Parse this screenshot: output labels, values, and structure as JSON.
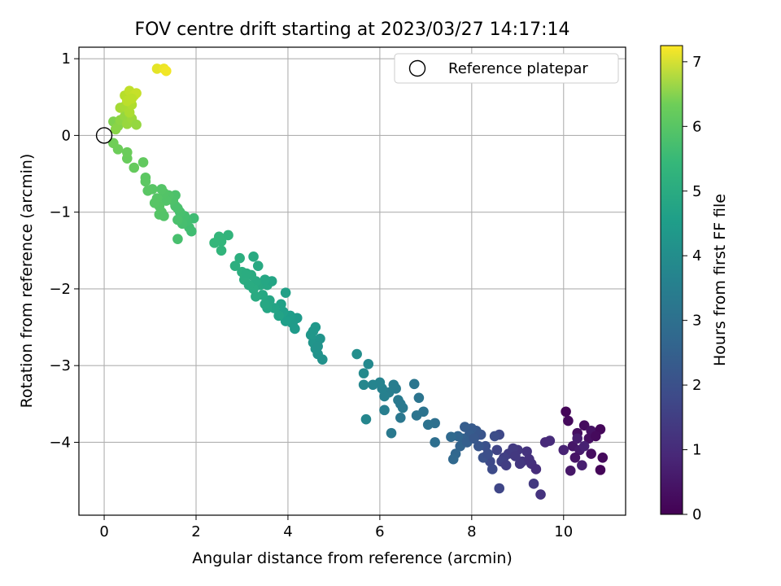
{
  "chart_data": {
    "type": "scatter",
    "title": "FOV centre drift starting at 2023/03/27 14:17:14",
    "xlabel": "Angular distance from reference (arcmin)",
    "ylabel": "Rotation from reference (arcmin)",
    "xlim": [
      -0.55,
      11.35
    ],
    "ylim": [
      -4.95,
      1.15
    ],
    "xticks": [
      0,
      2,
      4,
      6,
      8,
      10
    ],
    "xtick_labels": [
      "0",
      "2",
      "4",
      "6",
      "8",
      "10"
    ],
    "yticks": [
      1,
      0,
      -1,
      -2,
      -3,
      -4
    ],
    "ytick_labels": [
      "1",
      "0",
      "−1",
      "−2",
      "−3",
      "−4"
    ],
    "grid": true,
    "colormap": "viridis",
    "colorbar": {
      "label": "Hours from first FF file",
      "range": [
        0,
        7.25
      ],
      "ticks": [
        0,
        1,
        2,
        3,
        4,
        5,
        6,
        7
      ],
      "tick_labels": [
        "0",
        "1",
        "2",
        "3",
        "4",
        "5",
        "6",
        "7"
      ]
    },
    "legend": {
      "position": "top-right",
      "entries": [
        "Reference platepar"
      ]
    },
    "reference_point": {
      "x": 0,
      "y": 0,
      "name": "Reference platepar"
    },
    "points": [
      {
        "x": 10.05,
        "y": -3.6,
        "c": 0.1
      },
      {
        "x": 10.1,
        "y": -3.72,
        "c": 0.2
      },
      {
        "x": 10.3,
        "y": -3.88,
        "c": 0.3
      },
      {
        "x": 10.45,
        "y": -3.78,
        "c": 0.25
      },
      {
        "x": 10.6,
        "y": -3.85,
        "c": 0.4
      },
      {
        "x": 10.8,
        "y": -3.83,
        "c": 0.15
      },
      {
        "x": 10.55,
        "y": -3.95,
        "c": 0.35
      },
      {
        "x": 10.7,
        "y": -3.92,
        "c": 0.2
      },
      {
        "x": 10.2,
        "y": -4.05,
        "c": 0.5
      },
      {
        "x": 10.35,
        "y": -4.1,
        "c": 0.6
      },
      {
        "x": 10.0,
        "y": -4.1,
        "c": 0.8
      },
      {
        "x": 10.25,
        "y": -4.2,
        "c": 0.45
      },
      {
        "x": 10.6,
        "y": -4.15,
        "c": 0.3
      },
      {
        "x": 10.85,
        "y": -4.2,
        "c": 0.2
      },
      {
        "x": 10.4,
        "y": -4.3,
        "c": 0.7
      },
      {
        "x": 10.15,
        "y": -4.37,
        "c": 0.5
      },
      {
        "x": 10.8,
        "y": -4.36,
        "c": 0.1
      },
      {
        "x": 10.3,
        "y": -3.95,
        "c": 0.65
      },
      {
        "x": 10.45,
        "y": -4.05,
        "c": 0.75
      },
      {
        "x": 9.7,
        "y": -3.98,
        "c": 1.0
      },
      {
        "x": 9.6,
        "y": -4.0,
        "c": 0.95
      },
      {
        "x": 9.2,
        "y": -4.12,
        "c": 1.2
      },
      {
        "x": 9.0,
        "y": -4.1,
        "c": 1.3
      },
      {
        "x": 8.9,
        "y": -4.08,
        "c": 1.4
      },
      {
        "x": 8.8,
        "y": -4.15,
        "c": 1.45
      },
      {
        "x": 8.7,
        "y": -4.2,
        "c": 1.55
      },
      {
        "x": 9.1,
        "y": -4.25,
        "c": 1.25
      },
      {
        "x": 9.3,
        "y": -4.28,
        "c": 1.1
      },
      {
        "x": 9.4,
        "y": -4.35,
        "c": 1.05
      },
      {
        "x": 9.25,
        "y": -4.22,
        "c": 1.15
      },
      {
        "x": 9.5,
        "y": -4.68,
        "c": 1.2
      },
      {
        "x": 9.35,
        "y": -4.54,
        "c": 1.35
      },
      {
        "x": 8.6,
        "y": -4.6,
        "c": 1.7
      },
      {
        "x": 8.55,
        "y": -4.1,
        "c": 1.65
      },
      {
        "x": 8.4,
        "y": -4.25,
        "c": 1.8
      },
      {
        "x": 8.45,
        "y": -4.35,
        "c": 1.85
      },
      {
        "x": 8.6,
        "y": -3.9,
        "c": 1.75
      },
      {
        "x": 8.5,
        "y": -3.92,
        "c": 1.9
      },
      {
        "x": 8.3,
        "y": -4.05,
        "c": 2.0
      },
      {
        "x": 8.25,
        "y": -4.2,
        "c": 2.05
      },
      {
        "x": 8.35,
        "y": -4.15,
        "c": 1.95
      },
      {
        "x": 8.65,
        "y": -4.25,
        "c": 1.6
      },
      {
        "x": 8.75,
        "y": -4.3,
        "c": 1.5
      },
      {
        "x": 9.05,
        "y": -4.28,
        "c": 1.3
      },
      {
        "x": 8.95,
        "y": -4.18,
        "c": 1.35
      },
      {
        "x": 8.2,
        "y": -3.9,
        "c": 2.1
      },
      {
        "x": 8.1,
        "y": -3.85,
        "c": 2.2
      },
      {
        "x": 8.0,
        "y": -3.82,
        "c": 2.3
      },
      {
        "x": 7.85,
        "y": -3.8,
        "c": 2.4
      },
      {
        "x": 7.95,
        "y": -3.9,
        "c": 2.35
      },
      {
        "x": 7.8,
        "y": -3.95,
        "c": 2.5
      },
      {
        "x": 7.75,
        "y": -4.05,
        "c": 2.6
      },
      {
        "x": 7.9,
        "y": -4.0,
        "c": 2.45
      },
      {
        "x": 8.05,
        "y": -3.95,
        "c": 2.25
      },
      {
        "x": 7.65,
        "y": -4.15,
        "c": 2.7
      },
      {
        "x": 7.6,
        "y": -4.22,
        "c": 2.75
      },
      {
        "x": 7.7,
        "y": -3.92,
        "c": 2.65
      },
      {
        "x": 8.15,
        "y": -4.05,
        "c": 2.15
      },
      {
        "x": 7.55,
        "y": -3.93,
        "c": 2.8
      },
      {
        "x": 7.2,
        "y": -3.75,
        "c": 3.0
      },
      {
        "x": 7.2,
        "y": -4.0,
        "c": 2.95
      },
      {
        "x": 7.05,
        "y": -3.77,
        "c": 3.05
      },
      {
        "x": 6.95,
        "y": -3.6,
        "c": 3.1
      },
      {
        "x": 6.85,
        "y": -3.42,
        "c": 3.15
      },
      {
        "x": 6.75,
        "y": -3.24,
        "c": 3.2
      },
      {
        "x": 6.8,
        "y": -3.65,
        "c": 3.12
      },
      {
        "x": 6.5,
        "y": -3.55,
        "c": 3.3
      },
      {
        "x": 6.4,
        "y": -3.45,
        "c": 3.35
      },
      {
        "x": 6.35,
        "y": -3.3,
        "c": 3.4
      },
      {
        "x": 6.3,
        "y": -3.25,
        "c": 3.45
      },
      {
        "x": 6.2,
        "y": -3.35,
        "c": 3.5
      },
      {
        "x": 6.1,
        "y": -3.4,
        "c": 3.55
      },
      {
        "x": 6.05,
        "y": -3.3,
        "c": 3.6
      },
      {
        "x": 6.0,
        "y": -3.22,
        "c": 3.65
      },
      {
        "x": 6.1,
        "y": -3.58,
        "c": 3.5
      },
      {
        "x": 6.25,
        "y": -3.88,
        "c": 3.3
      },
      {
        "x": 6.45,
        "y": -3.68,
        "c": 3.25
      },
      {
        "x": 6.45,
        "y": -3.5,
        "c": 3.3
      },
      {
        "x": 5.85,
        "y": -3.25,
        "c": 3.7
      },
      {
        "x": 5.65,
        "y": -3.25,
        "c": 3.8
      },
      {
        "x": 5.7,
        "y": -3.7,
        "c": 3.75
      },
      {
        "x": 5.75,
        "y": -2.98,
        "c": 3.85
      },
      {
        "x": 5.65,
        "y": -3.1,
        "c": 3.9
      },
      {
        "x": 5.5,
        "y": -2.85,
        "c": 4.0
      },
      {
        "x": 4.75,
        "y": -2.92,
        "c": 4.1
      },
      {
        "x": 4.65,
        "y": -2.85,
        "c": 4.15
      },
      {
        "x": 4.6,
        "y": -2.78,
        "c": 4.2
      },
      {
        "x": 4.55,
        "y": -2.7,
        "c": 4.25
      },
      {
        "x": 4.5,
        "y": -2.6,
        "c": 4.3
      },
      {
        "x": 4.6,
        "y": -2.5,
        "c": 4.35
      },
      {
        "x": 4.55,
        "y": -2.55,
        "c": 4.32
      },
      {
        "x": 4.7,
        "y": -2.65,
        "c": 4.22
      },
      {
        "x": 4.65,
        "y": -2.75,
        "c": 4.18
      },
      {
        "x": 4.2,
        "y": -2.38,
        "c": 4.4
      },
      {
        "x": 4.1,
        "y": -2.45,
        "c": 4.45
      },
      {
        "x": 4.15,
        "y": -2.52,
        "c": 4.42
      },
      {
        "x": 4.05,
        "y": -2.35,
        "c": 4.5
      },
      {
        "x": 3.95,
        "y": -2.42,
        "c": 4.55
      },
      {
        "x": 3.9,
        "y": -2.3,
        "c": 4.6
      },
      {
        "x": 3.85,
        "y": -2.2,
        "c": 4.65
      },
      {
        "x": 3.95,
        "y": -2.05,
        "c": 4.62
      },
      {
        "x": 3.8,
        "y": -2.35,
        "c": 4.7
      },
      {
        "x": 3.7,
        "y": -2.25,
        "c": 4.75
      },
      {
        "x": 3.6,
        "y": -2.15,
        "c": 4.8
      },
      {
        "x": 3.55,
        "y": -2.25,
        "c": 4.82
      },
      {
        "x": 3.5,
        "y": -2.2,
        "c": 4.85
      },
      {
        "x": 3.45,
        "y": -2.08,
        "c": 4.88
      },
      {
        "x": 3.4,
        "y": -1.95,
        "c": 4.9
      },
      {
        "x": 3.55,
        "y": -1.95,
        "c": 4.87
      },
      {
        "x": 3.65,
        "y": -1.9,
        "c": 4.78
      },
      {
        "x": 3.5,
        "y": -1.88,
        "c": 4.84
      },
      {
        "x": 3.3,
        "y": -1.9,
        "c": 4.95
      },
      {
        "x": 3.25,
        "y": -2.0,
        "c": 5.0
      },
      {
        "x": 3.3,
        "y": -2.1,
        "c": 4.98
      },
      {
        "x": 3.2,
        "y": -1.82,
        "c": 5.02
      },
      {
        "x": 3.35,
        "y": -1.7,
        "c": 4.93
      },
      {
        "x": 3.25,
        "y": -1.58,
        "c": 4.96
      },
      {
        "x": 3.05,
        "y": -1.88,
        "c": 5.05
      },
      {
        "x": 3.0,
        "y": -1.78,
        "c": 5.08
      },
      {
        "x": 3.1,
        "y": -1.8,
        "c": 5.04
      },
      {
        "x": 2.95,
        "y": -1.6,
        "c": 5.1
      },
      {
        "x": 2.85,
        "y": -1.7,
        "c": 5.12
      },
      {
        "x": 3.15,
        "y": -1.95,
        "c": 5.0
      },
      {
        "x": 2.7,
        "y": -1.3,
        "c": 5.3
      },
      {
        "x": 2.55,
        "y": -1.38,
        "c": 5.35
      },
      {
        "x": 2.5,
        "y": -1.32,
        "c": 5.38
      },
      {
        "x": 2.4,
        "y": -1.4,
        "c": 5.4
      },
      {
        "x": 2.55,
        "y": -1.5,
        "c": 5.33
      },
      {
        "x": 1.95,
        "y": -1.08,
        "c": 5.6
      },
      {
        "x": 1.9,
        "y": -1.25,
        "c": 5.62
      },
      {
        "x": 1.85,
        "y": -1.2,
        "c": 5.65
      },
      {
        "x": 1.8,
        "y": -1.12,
        "c": 5.68
      },
      {
        "x": 1.75,
        "y": -1.05,
        "c": 5.7
      },
      {
        "x": 1.7,
        "y": -1.15,
        "c": 5.72
      },
      {
        "x": 1.65,
        "y": -1.0,
        "c": 5.75
      },
      {
        "x": 1.6,
        "y": -1.1,
        "c": 5.78
      },
      {
        "x": 1.55,
        "y": -0.92,
        "c": 5.8
      },
      {
        "x": 1.55,
        "y": -0.78,
        "c": 5.82
      },
      {
        "x": 1.5,
        "y": -0.85,
        "c": 5.84
      },
      {
        "x": 1.6,
        "y": -0.95,
        "c": 5.79
      },
      {
        "x": 1.6,
        "y": -1.35,
        "c": 5.74
      },
      {
        "x": 1.4,
        "y": -0.78,
        "c": 5.88
      },
      {
        "x": 1.35,
        "y": -0.85,
        "c": 5.9
      },
      {
        "x": 1.3,
        "y": -0.75,
        "c": 5.92
      },
      {
        "x": 1.25,
        "y": -1.0,
        "c": 5.93
      },
      {
        "x": 1.2,
        "y": -0.92,
        "c": 5.95
      },
      {
        "x": 1.25,
        "y": -0.7,
        "c": 5.94
      },
      {
        "x": 1.15,
        "y": -0.82,
        "c": 5.97
      },
      {
        "x": 1.1,
        "y": -0.88,
        "c": 5.98
      },
      {
        "x": 1.05,
        "y": -0.7,
        "c": 6.0
      },
      {
        "x": 0.95,
        "y": -0.72,
        "c": 6.02
      },
      {
        "x": 0.9,
        "y": -0.6,
        "c": 6.05
      },
      {
        "x": 0.9,
        "y": -0.55,
        "c": 6.06
      },
      {
        "x": 1.2,
        "y": -1.03,
        "c": 5.96
      },
      {
        "x": 1.3,
        "y": -1.05,
        "c": 5.91
      },
      {
        "x": 0.85,
        "y": -0.35,
        "c": 6.15
      },
      {
        "x": 0.65,
        "y": -0.42,
        "c": 6.2
      },
      {
        "x": 0.5,
        "y": -0.3,
        "c": 6.25
      },
      {
        "x": 0.5,
        "y": -0.22,
        "c": 6.28
      },
      {
        "x": 0.3,
        "y": -0.18,
        "c": 6.32
      },
      {
        "x": 0.2,
        "y": -0.1,
        "c": 6.35
      },
      {
        "x": 0.2,
        "y": 0.18,
        "c": 6.45
      },
      {
        "x": 0.3,
        "y": 0.12,
        "c": 6.5
      },
      {
        "x": 0.25,
        "y": 0.08,
        "c": 6.52
      },
      {
        "x": 0.35,
        "y": 0.2,
        "c": 6.55
      },
      {
        "x": 0.45,
        "y": 0.25,
        "c": 6.6
      },
      {
        "x": 0.5,
        "y": 0.15,
        "c": 6.62
      },
      {
        "x": 0.6,
        "y": 0.22,
        "c": 6.65
      },
      {
        "x": 0.7,
        "y": 0.14,
        "c": 6.6
      },
      {
        "x": 0.35,
        "y": 0.36,
        "c": 6.7
      },
      {
        "x": 0.45,
        "y": 0.38,
        "c": 6.72
      },
      {
        "x": 0.55,
        "y": 0.3,
        "c": 6.75
      },
      {
        "x": 0.6,
        "y": 0.4,
        "c": 6.78
      },
      {
        "x": 0.45,
        "y": 0.52,
        "c": 6.82
      },
      {
        "x": 0.5,
        "y": 0.45,
        "c": 6.85
      },
      {
        "x": 0.55,
        "y": 0.58,
        "c": 6.88
      },
      {
        "x": 0.65,
        "y": 0.52,
        "c": 6.9
      },
      {
        "x": 0.7,
        "y": 0.55,
        "c": 6.92
      },
      {
        "x": 0.6,
        "y": 0.48,
        "c": 6.86
      },
      {
        "x": 1.15,
        "y": 0.87,
        "c": 7.1
      },
      {
        "x": 1.3,
        "y": 0.87,
        "c": 7.15
      },
      {
        "x": 1.35,
        "y": 0.84,
        "c": 7.18
      }
    ]
  }
}
